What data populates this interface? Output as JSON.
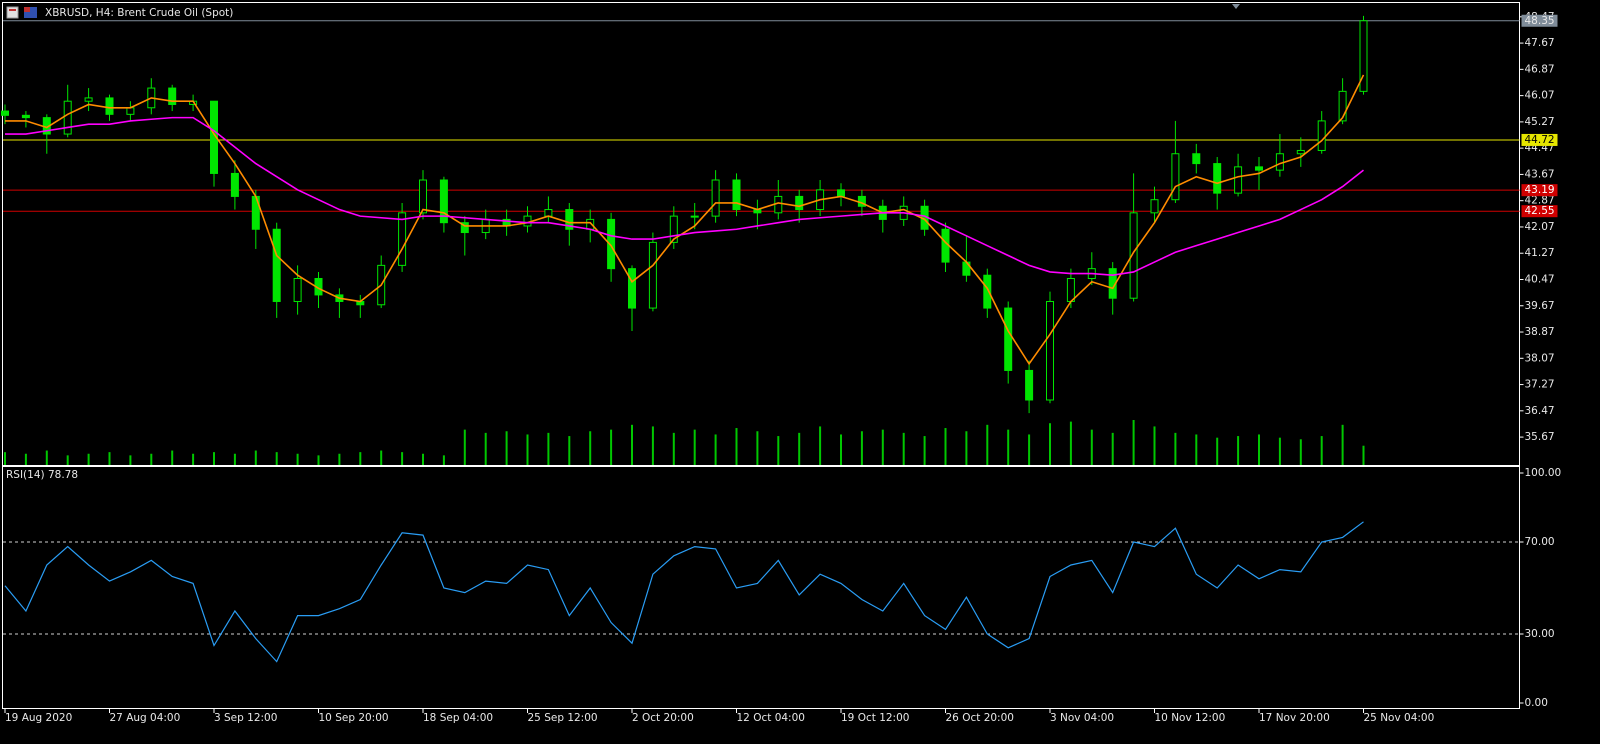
{
  "chart_data": [
    {
      "type": "candlestick",
      "title": "XBRUSD, H4:  Brent Crude Oil (Spot)",
      "color": "#00e600",
      "categories": [
        "19 Aug 2020",
        null,
        null,
        null,
        null,
        "27 Aug 04:00",
        null,
        null,
        null,
        null,
        "3 Sep 12:00",
        null,
        null,
        null,
        null,
        "10 Sep 20:00",
        null,
        null,
        null,
        null,
        "18 Sep 04:00",
        null,
        null,
        null,
        null,
        "25 Sep 12:00",
        null,
        null,
        null,
        null,
        "2 Oct 20:00",
        null,
        null,
        null,
        null,
        "12 Oct 04:00",
        null,
        null,
        null,
        null,
        "19 Oct 12:00",
        null,
        null,
        null,
        null,
        "26 Oct 20:00",
        null,
        null,
        null,
        null,
        "3 Nov 04:00",
        null,
        null,
        null,
        null,
        "10 Nov 12:00",
        null,
        null,
        null,
        null,
        "17 Nov 20:00",
        null,
        null,
        null,
        null,
        "25 Nov 04:00"
      ],
      "open": [
        45.6,
        45.47,
        45.4,
        44.9,
        45.9,
        46.0,
        45.5,
        45.7,
        46.3,
        45.8,
        45.9,
        43.7,
        43.0,
        42.0,
        39.8,
        40.5,
        40.0,
        39.8,
        39.7,
        40.9,
        42.5,
        43.5,
        42.2,
        41.9,
        42.3,
        42.1,
        42.4,
        42.6,
        42.0,
        42.3,
        40.8,
        39.6,
        41.6,
        42.4,
        42.4,
        43.5,
        42.6,
        42.5,
        43.0,
        42.6,
        43.2,
        43.0,
        42.7,
        42.3,
        42.7,
        42.0,
        41.0,
        40.6,
        39.6,
        37.7,
        36.8,
        39.8,
        40.5,
        40.8,
        39.9,
        42.5,
        42.9,
        44.3,
        44.0,
        43.1,
        43.9,
        43.8,
        44.3,
        44.4,
        45.3,
        46.2
      ],
      "high": [
        45.8,
        45.6,
        45.5,
        46.4,
        46.3,
        46.1,
        45.9,
        46.6,
        46.4,
        46.1,
        45.9,
        44.1,
        43.2,
        42.2,
        40.9,
        40.7,
        40.2,
        40.0,
        41.2,
        42.8,
        43.8,
        43.6,
        42.4,
        42.6,
        42.6,
        42.7,
        43.0,
        42.8,
        42.6,
        42.5,
        40.9,
        41.9,
        42.7,
        42.8,
        43.8,
        43.7,
        42.9,
        43.5,
        43.2,
        43.5,
        43.4,
        43.2,
        42.9,
        43.0,
        42.9,
        42.2,
        41.8,
        40.8,
        39.8,
        38.0,
        40.1,
        40.8,
        41.3,
        41.0,
        43.7,
        43.3,
        45.3,
        44.6,
        44.2,
        44.3,
        44.2,
        44.9,
        44.8,
        45.6,
        46.6,
        48.5
      ],
      "low": [
        45.2,
        45.1,
        44.3,
        44.8,
        45.6,
        45.3,
        45.3,
        45.5,
        45.6,
        45.6,
        43.3,
        42.6,
        41.4,
        39.3,
        39.4,
        39.6,
        39.3,
        39.3,
        39.6,
        40.7,
        42.3,
        41.9,
        41.2,
        41.7,
        41.8,
        41.9,
        42.2,
        41.5,
        41.6,
        40.4,
        38.9,
        39.5,
        41.4,
        42.0,
        42.2,
        42.4,
        42.0,
        42.3,
        42.2,
        42.4,
        42.7,
        42.4,
        41.9,
        42.1,
        41.8,
        40.7,
        40.4,
        39.3,
        37.3,
        36.4,
        36.7,
        39.6,
        40.3,
        39.4,
        39.8,
        42.2,
        42.8,
        43.7,
        42.6,
        43.0,
        43.2,
        43.6,
        43.9,
        44.3,
        45.2,
        46.1
      ],
      "close": [
        45.47,
        45.4,
        44.9,
        45.9,
        46.0,
        45.5,
        45.7,
        46.3,
        45.8,
        45.9,
        43.7,
        43.0,
        42.0,
        39.8,
        40.5,
        40.0,
        39.8,
        39.7,
        40.9,
        42.5,
        43.5,
        42.2,
        41.9,
        42.3,
        42.1,
        42.4,
        42.6,
        42.0,
        42.3,
        40.8,
        39.6,
        41.6,
        42.4,
        42.4,
        43.5,
        42.6,
        42.5,
        43.0,
        42.6,
        43.2,
        43.0,
        42.7,
        42.3,
        42.7,
        42.0,
        41.0,
        40.6,
        39.6,
        37.7,
        36.8,
        39.8,
        40.5,
        40.8,
        39.9,
        42.5,
        42.9,
        44.3,
        44.0,
        43.1,
        43.9,
        43.8,
        44.3,
        44.4,
        45.3,
        46.2,
        48.35
      ],
      "overlays": [
        {
          "color": "#ff8c00",
          "values": [
            45.3,
            45.3,
            45.1,
            45.5,
            45.8,
            45.7,
            45.7,
            46.0,
            45.9,
            45.9,
            44.9,
            44.0,
            43.0,
            41.2,
            40.6,
            40.2,
            39.9,
            39.8,
            40.3,
            41.4,
            42.6,
            42.5,
            42.1,
            42.1,
            42.1,
            42.2,
            42.4,
            42.2,
            42.2,
            41.5,
            40.4,
            40.9,
            41.7,
            42.1,
            42.8,
            42.8,
            42.6,
            42.8,
            42.7,
            42.9,
            43.0,
            42.8,
            42.5,
            42.6,
            42.3,
            41.6,
            41.0,
            40.2,
            38.9,
            37.9,
            38.8,
            39.8,
            40.4,
            40.2,
            41.3,
            42.2,
            43.3,
            43.6,
            43.4,
            43.6,
            43.7,
            44.0,
            44.2,
            44.7,
            45.4,
            46.7
          ]
        },
        {
          "color": "#ff00ff",
          "values": [
            44.9,
            44.9,
            45.0,
            45.1,
            45.2,
            45.2,
            45.3,
            45.35,
            45.4,
            45.4,
            45.0,
            44.5,
            44.0,
            43.6,
            43.2,
            42.9,
            42.6,
            42.4,
            42.35,
            42.3,
            42.4,
            42.4,
            42.35,
            42.3,
            42.25,
            42.2,
            42.2,
            42.1,
            42.0,
            41.8,
            41.7,
            41.7,
            41.8,
            41.9,
            41.95,
            42.0,
            42.1,
            42.2,
            42.3,
            42.35,
            42.4,
            42.45,
            42.5,
            42.5,
            42.4,
            42.1,
            41.8,
            41.5,
            41.2,
            40.9,
            40.7,
            40.65,
            40.65,
            40.6,
            40.7,
            41.0,
            41.3,
            41.5,
            41.7,
            41.9,
            42.1,
            42.3,
            42.6,
            42.9,
            43.3,
            43.8
          ]
        }
      ],
      "volume": {
        "color": "#00c800",
        "values": [
          800,
          700,
          900,
          600,
          700,
          800,
          600,
          700,
          900,
          700,
          800,
          700,
          900,
          800,
          700,
          600,
          700,
          800,
          900,
          800,
          700,
          600,
          2200,
          2000,
          2100,
          1900,
          2000,
          1800,
          2100,
          2200,
          2500,
          2400,
          2000,
          2200,
          1900,
          2300,
          2100,
          1800,
          2000,
          2400,
          1900,
          2100,
          2200,
          2000,
          1800,
          2300,
          2100,
          2500,
          2200,
          1900,
          2600,
          2700,
          2200,
          2000,
          2800,
          2400,
          2000,
          1900,
          1700,
          1800,
          1900,
          1700,
          1600,
          1800,
          2500,
          1200
        ]
      },
      "levels": [
        {
          "value": 44.72,
          "color": "#e6e600"
        },
        {
          "value": 43.19,
          "color": "#d00000"
        },
        {
          "value": 42.55,
          "color": "#d00000"
        }
      ],
      "last_price": {
        "value": 48.35,
        "color": "#7f8c99"
      },
      "ylim": [
        34.82,
        48.83
      ],
      "yticks": [
        48.47,
        47.67,
        46.87,
        46.07,
        45.27,
        44.47,
        43.67,
        42.87,
        42.07,
        41.27,
        40.47,
        39.67,
        38.87,
        38.07,
        37.27,
        36.47,
        35.67
      ]
    },
    {
      "type": "line",
      "title": "RSI(14)",
      "color": "#2a9df4",
      "values": [
        51,
        40,
        60,
        68,
        60,
        53,
        57,
        62,
        55,
        52,
        25,
        40,
        28,
        18,
        38,
        38,
        41,
        45,
        60,
        74,
        73,
        50,
        48,
        53,
        52,
        60,
        58,
        38,
        50,
        35,
        26,
        56,
        64,
        68,
        67,
        50,
        52,
        62,
        47,
        56,
        52,
        45,
        40,
        52,
        38,
        32,
        46,
        30,
        24,
        28,
        55,
        60,
        62,
        48,
        70,
        68,
        76,
        56,
        50,
        60,
        54,
        58,
        57,
        70,
        72,
        78.78
      ],
      "ylim": [
        0,
        100
      ],
      "yticks": [
        {
          "value": 100,
          "label": "100.00"
        },
        {
          "value": 70,
          "label": "70.00"
        },
        {
          "value": 30,
          "label": "30.00"
        },
        {
          "value": 0,
          "label": "0.00"
        }
      ]
    }
  ]
}
